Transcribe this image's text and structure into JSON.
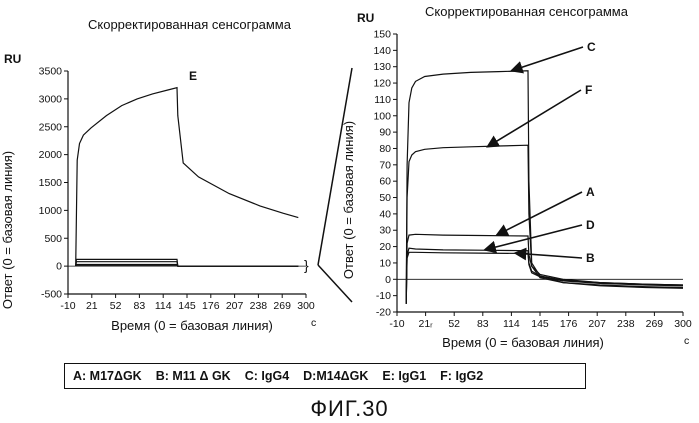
{
  "chart_data": [
    {
      "type": "line",
      "title": "Скорректированная сенсограмма",
      "unit_label": "RU",
      "xlabel": "Время (0 = базовая линия)",
      "xunit": "c",
      "ylabel": "Ответ (0 = базовая линия)",
      "xlim": [
        -10,
        300
      ],
      "ylim": [
        -500,
        3500
      ],
      "xticks": [
        -10,
        21,
        52,
        83,
        114,
        145,
        176,
        207,
        238,
        269,
        300
      ],
      "yticks": [
        -500,
        0,
        500,
        1000,
        1500,
        2000,
        2500,
        3000,
        3500
      ],
      "series": [
        {
          "name": "E",
          "x": [
            0,
            2,
            5,
            10,
            20,
            40,
            60,
            80,
            100,
            120,
            132,
            133,
            140,
            160,
            200,
            240,
            270,
            290
          ],
          "y": [
            0,
            1900,
            2200,
            2350,
            2480,
            2700,
            2880,
            3000,
            3090,
            3160,
            3200,
            2700,
            1850,
            1600,
            1300,
            1080,
            950,
            870
          ]
        },
        {
          "name": "",
          "x": [
            0,
            1,
            132,
            133,
            290
          ],
          "y": [
            0,
            120,
            120,
            0,
            0
          ]
        },
        {
          "name": "",
          "x": [
            0,
            1,
            132,
            133,
            290
          ],
          "y": [
            0,
            80,
            80,
            0,
            0
          ]
        },
        {
          "name": "",
          "x": [
            0,
            1,
            132,
            133,
            290
          ],
          "y": [
            0,
            30,
            30,
            0,
            0
          ]
        },
        {
          "name": "",
          "x": [
            0,
            1,
            132,
            133,
            290
          ],
          "y": [
            0,
            15,
            15,
            0,
            0
          ]
        }
      ]
    },
    {
      "type": "line",
      "title": "Скорректированная сенсограмма",
      "unit_label": "RU",
      "xlabel": "Время (0 = базовая линия)",
      "xunit": "c",
      "ylabel": "Ответ (0 = базовая линия)",
      "xlim": [
        -10,
        300
      ],
      "ylim": [
        -20,
        150
      ],
      "xticks": [
        -10,
        21,
        52,
        83,
        114,
        145,
        176,
        207,
        238,
        269,
        300
      ],
      "xtick_labels": [
        "-10",
        "21ᵣ",
        "52",
        "83",
        "114",
        "145",
        "176",
        "207",
        "238",
        "269",
        "300"
      ],
      "yticks": [
        -20,
        -10,
        0,
        10,
        20,
        30,
        40,
        50,
        60,
        70,
        80,
        90,
        100,
        110,
        120,
        130,
        140,
        150
      ],
      "series": [
        {
          "name": "C",
          "x": [
            0,
            1,
            3,
            6,
            10,
            20,
            40,
            70,
            100,
            132,
            133,
            136,
            145,
            170,
            210,
            260,
            300
          ],
          "y": [
            -15,
            70,
            108,
            117,
            121,
            124,
            125.5,
            126.5,
            127,
            127.5,
            60,
            10,
            2,
            -2,
            -4,
            -5,
            -5.5
          ]
        },
        {
          "name": "F",
          "x": [
            0,
            1,
            3,
            6,
            10,
            20,
            40,
            70,
            100,
            132,
            133,
            136,
            145,
            170,
            210,
            260,
            300
          ],
          "y": [
            -15,
            50,
            72,
            76,
            78,
            79.5,
            80.5,
            81,
            81.5,
            82,
            40,
            8,
            1,
            -2,
            -3.5,
            -4.5,
            -5
          ]
        },
        {
          "name": "A",
          "x": [
            0,
            1,
            3,
            10,
            40,
            80,
            132,
            133,
            136,
            145,
            170,
            210,
            260,
            300
          ],
          "y": [
            -15,
            22,
            27,
            27.5,
            27,
            26.8,
            26.5,
            15,
            8,
            3,
            0,
            -2,
            -3,
            -3.5
          ]
        },
        {
          "name": "D",
          "x": [
            0,
            1,
            3,
            10,
            40,
            80,
            132,
            133,
            136,
            145,
            170,
            210,
            260,
            300
          ],
          "y": [
            -15,
            15,
            19,
            18.5,
            18,
            17.8,
            17.5,
            10,
            5,
            2,
            -0.5,
            -2,
            -3,
            -3.5
          ]
        },
        {
          "name": "B",
          "x": [
            0,
            1,
            3,
            10,
            40,
            80,
            132,
            133,
            136,
            145,
            170,
            210,
            260,
            300
          ],
          "y": [
            -15,
            13,
            16.5,
            16.5,
            16.2,
            16,
            15.8,
            9,
            4,
            1.5,
            -1,
            -2.5,
            -3.5,
            -4
          ]
        }
      ],
      "annotations": [
        {
          "label": "C",
          "points_to": [
            114,
            127.5
          ]
        },
        {
          "label": "F",
          "points_to": [
            88,
            81
          ]
        },
        {
          "label": "A",
          "points_to": [
            98,
            27
          ]
        },
        {
          "label": "D",
          "points_to": [
            85,
            18
          ]
        },
        {
          "label": "B",
          "points_to": [
            118,
            16
          ]
        }
      ]
    }
  ],
  "legend": {
    "items": [
      "A: M17ΔGK",
      "B: M11 Δ GK",
      "C: IgG4",
      "D:M14ΔGK",
      "E: IgG1",
      "F: IgG2"
    ]
  },
  "figure_label": "ФИГ.30"
}
